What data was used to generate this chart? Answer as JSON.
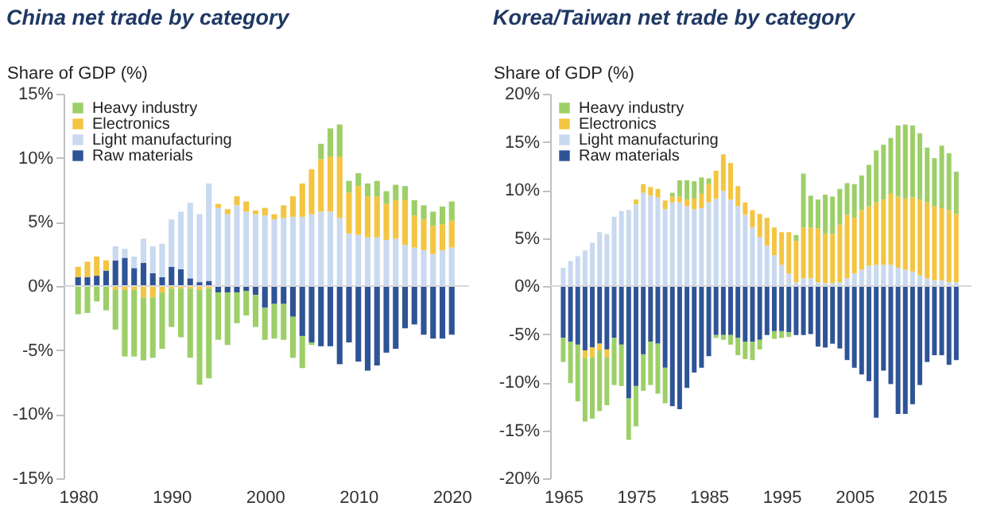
{
  "chart_data": [
    {
      "type": "bar",
      "title": "China net trade by category",
      "ylabel": "Share of GDP (%)",
      "stacked": true,
      "legend": "top left",
      "x": [
        1980,
        1981,
        1982,
        1983,
        1984,
        1985,
        1986,
        1987,
        1988,
        1989,
        1990,
        1991,
        1992,
        1993,
        1994,
        1995,
        1996,
        1997,
        1998,
        1999,
        2000,
        2001,
        2002,
        2003,
        2004,
        2005,
        2006,
        2007,
        2008,
        2009,
        2010,
        2011,
        2012,
        2013,
        2014,
        2015,
        2016,
        2017,
        2018,
        2019,
        2020
      ],
      "xlim": [
        1979.3,
        2021
      ],
      "xticks": [
        1980,
        1990,
        2000,
        2010,
        2020
      ],
      "ylim": [
        -15,
        15
      ],
      "yticks": [
        {
          "value": -15,
          "label": "-15%"
        },
        {
          "value": -10,
          "label": "-10%"
        },
        {
          "value": -5,
          "label": "-5%"
        },
        {
          "value": 0,
          "label": "0%"
        },
        {
          "value": 5,
          "label": "5%"
        },
        {
          "value": 10,
          "label": "10%"
        },
        {
          "value": 15,
          "label": "15%"
        }
      ],
      "ref_lines": [
        {
          "axis": "y",
          "value": 0,
          "color": "#d9d9d9"
        }
      ],
      "series": [
        {
          "name": "Raw materials",
          "color": "#2f5496",
          "values": [
            0.7,
            0.7,
            0.8,
            1.2,
            2.0,
            2.2,
            1.4,
            1.8,
            1.0,
            0.7,
            1.5,
            1.3,
            0.6,
            0.3,
            0.4,
            -0.5,
            -0.5,
            -0.5,
            -0.4,
            -0.7,
            -1.7,
            -1.4,
            -1.4,
            -2.4,
            -3.9,
            -4.4,
            -4.7,
            -4.7,
            -6.1,
            -4.4,
            -5.9,
            -6.6,
            -6.2,
            -5.2,
            -4.9,
            -3.3,
            -3.0,
            -3.8,
            -4.1,
            -4.1,
            -3.8
          ]
        },
        {
          "name": "Light manufacturing",
          "color": "#c9d9f0",
          "values": [
            null,
            null,
            null,
            null,
            1.1,
            0.7,
            0.9,
            1.9,
            2.1,
            2.6,
            3.7,
            4.5,
            5.9,
            5.3,
            7.6,
            6.1,
            5.6,
            6.3,
            5.8,
            5.6,
            5.5,
            5.2,
            5.3,
            5.4,
            5.4,
            5.6,
            5.8,
            5.8,
            5.3,
            4.1,
            4.0,
            3.8,
            3.8,
            3.6,
            3.7,
            3.2,
            3.0,
            2.8,
            2.5,
            2.8,
            3.0
          ]
        },
        {
          "name": "Electronics",
          "color": "#f4c542",
          "values": [
            0.8,
            1.2,
            1.5,
            0.8,
            -0.3,
            -0.3,
            -0.3,
            -0.9,
            -0.9,
            -0.5,
            -0.2,
            -0.2,
            -0.2,
            -0.3,
            -0.2,
            0.3,
            0.4,
            0.7,
            0.8,
            0.3,
            0.6,
            0.4,
            1.0,
            1.6,
            2.6,
            3.5,
            4.1,
            4.3,
            4.8,
            3.2,
            3.8,
            3.2,
            3.2,
            2.8,
            3.0,
            3.5,
            2.5,
            2.4,
            2.2,
            2.0,
            2.1
          ]
        },
        {
          "name": "Heavy industry",
          "color": "#9dcf68",
          "values": [
            -2.2,
            -2.1,
            -1.2,
            -1.9,
            -3.1,
            -5.2,
            -5.2,
            -4.9,
            -4.7,
            -4.4,
            -3.0,
            -3.8,
            -5.4,
            -7.4,
            -7.0,
            -3.7,
            -4.1,
            -2.4,
            -1.9,
            -2.5,
            -2.5,
            -2.7,
            -2.8,
            -3.2,
            -2.5,
            -0.2,
            1.2,
            2.2,
            2.5,
            0.9,
            1.0,
            1.0,
            1.2,
            1.0,
            1.2,
            1.1,
            1.2,
            1.1,
            1.1,
            1.4,
            1.5
          ]
        }
      ]
    },
    {
      "type": "bar",
      "title": "Korea/Taiwan net trade by category",
      "ylabel": "Share of GDP (%)",
      "stacked": true,
      "legend": "top left",
      "x": [
        1965,
        1966,
        1967,
        1968,
        1969,
        1970,
        1971,
        1972,
        1973,
        1974,
        1975,
        1976,
        1977,
        1978,
        1979,
        1980,
        1981,
        1982,
        1983,
        1984,
        1985,
        1986,
        1987,
        1988,
        1989,
        1990,
        1991,
        1992,
        1993,
        1994,
        1995,
        1996,
        1997,
        1998,
        1999,
        2000,
        2001,
        2002,
        2003,
        2004,
        2005,
        2006,
        2007,
        2008,
        2009,
        2010,
        2011,
        2012,
        2013,
        2014,
        2015,
        2016,
        2017,
        2018,
        2019
      ],
      "xlim": [
        1964.3,
        2020
      ],
      "xticks": [
        1965,
        1975,
        1985,
        1995,
        2005,
        2015
      ],
      "ylim": [
        -20,
        20
      ],
      "yticks": [
        {
          "value": -20,
          "label": "-20%"
        },
        {
          "value": -15,
          "label": "-15%"
        },
        {
          "value": -10,
          "label": "-10%"
        },
        {
          "value": -5,
          "label": "-5%"
        },
        {
          "value": 0,
          "label": "0%"
        },
        {
          "value": 5,
          "label": "5%"
        },
        {
          "value": 10,
          "label": "10%"
        },
        {
          "value": 15,
          "label": "15%"
        },
        {
          "value": 20,
          "label": "20%"
        }
      ],
      "ref_lines": [
        {
          "axis": "y",
          "value": 0,
          "color": "#d9d9d9"
        }
      ],
      "series": [
        {
          "name": "Raw materials",
          "color": "#2f5496",
          "values": [
            -5.4,
            -5.8,
            -6.1,
            -6.7,
            -6.4,
            -6.0,
            -6.6,
            -5.4,
            -6.1,
            -11.7,
            -10.4,
            -7.1,
            -5.8,
            -6.0,
            -8.5,
            -12.5,
            -12.8,
            -10.6,
            -9.0,
            -8.5,
            -7.3,
            -5.1,
            -5.1,
            -5.1,
            -5.4,
            -5.8,
            -5.8,
            -5.6,
            -5.1,
            -4.7,
            -4.7,
            -4.8,
            -5.1,
            -5.1,
            -5.0,
            -6.3,
            -6.4,
            -6.0,
            -6.5,
            -7.7,
            -8.5,
            -9.2,
            -9.9,
            -13.7,
            -8.8,
            -10.2,
            -13.3,
            -13.3,
            -12.3,
            -10.3,
            -7.9,
            -7.2,
            -7.2,
            -8.2,
            -7.7
          ]
        },
        {
          "name": "Light manufacturing",
          "color": "#c9d9f0",
          "values": [
            1.9,
            2.6,
            3.1,
            3.7,
            4.5,
            5.6,
            5.4,
            7.2,
            7.8,
            7.9,
            8.5,
            9.7,
            9.4,
            9.2,
            8.0,
            8.7,
            8.7,
            8.3,
            8.0,
            8.1,
            8.7,
            9.1,
            9.9,
            9.0,
            8.3,
            7.4,
            6.1,
            5.1,
            4.2,
            3.2,
            2.2,
            1.3,
            0.4,
            0.8,
            0.8,
            0.4,
            0.3,
            0.3,
            0.4,
            0.8,
            1.3,
            1.7,
            2.1,
            2.2,
            2.2,
            2.2,
            1.9,
            1.7,
            1.5,
            1.1,
            0.8,
            0.6,
            0.6,
            0.4,
            0.4
          ]
        },
        {
          "name": "Electronics",
          "color": "#f4c542",
          "values": [
            null,
            null,
            null,
            -0.8,
            -1.0,
            -0.7,
            -0.8,
            null,
            null,
            null,
            0.5,
            0.9,
            0.9,
            0.9,
            0.9,
            0.6,
            0.6,
            0.7,
            1.1,
            1.5,
            1.9,
            2.9,
            3.8,
            3.8,
            2.1,
            1.3,
            1.8,
            2.4,
            2.9,
            2.9,
            3.4,
            4.3,
            4.3,
            5.3,
            5.3,
            5.6,
            5.1,
            5.1,
            6.0,
            6.6,
            5.8,
            6.2,
            6.2,
            6.5,
            6.8,
            7.4,
            7.4,
            7.4,
            7.7,
            7.9,
            7.9,
            7.7,
            7.5,
            7.5,
            7.1
          ]
        },
        {
          "name": "Heavy industry",
          "color": "#9dcf68",
          "values": [
            -2.5,
            -4.3,
            -5.9,
            -6.6,
            -6.4,
            -6.3,
            -5.0,
            -4.9,
            -4.3,
            -4.3,
            -4.2,
            -3.8,
            -4.5,
            -5.2,
            -3.7,
            0.4,
            1.7,
            2.0,
            1.8,
            1.7,
            0.6,
            -0.3,
            -0.5,
            -1.0,
            -1.8,
            -1.8,
            -1.9,
            -1.0,
            null,
            -0.8,
            -0.7,
            -0.5,
            0.6,
            5.6,
            3.3,
            3.0,
            4.1,
            3.9,
            3.7,
            3.3,
            3.5,
            3.6,
            4.3,
            5.4,
            5.7,
            5.8,
            7.4,
            7.7,
            7.5,
            6.9,
            5.7,
            5.0,
            6.5,
            5.9,
            4.4
          ]
        }
      ]
    }
  ]
}
